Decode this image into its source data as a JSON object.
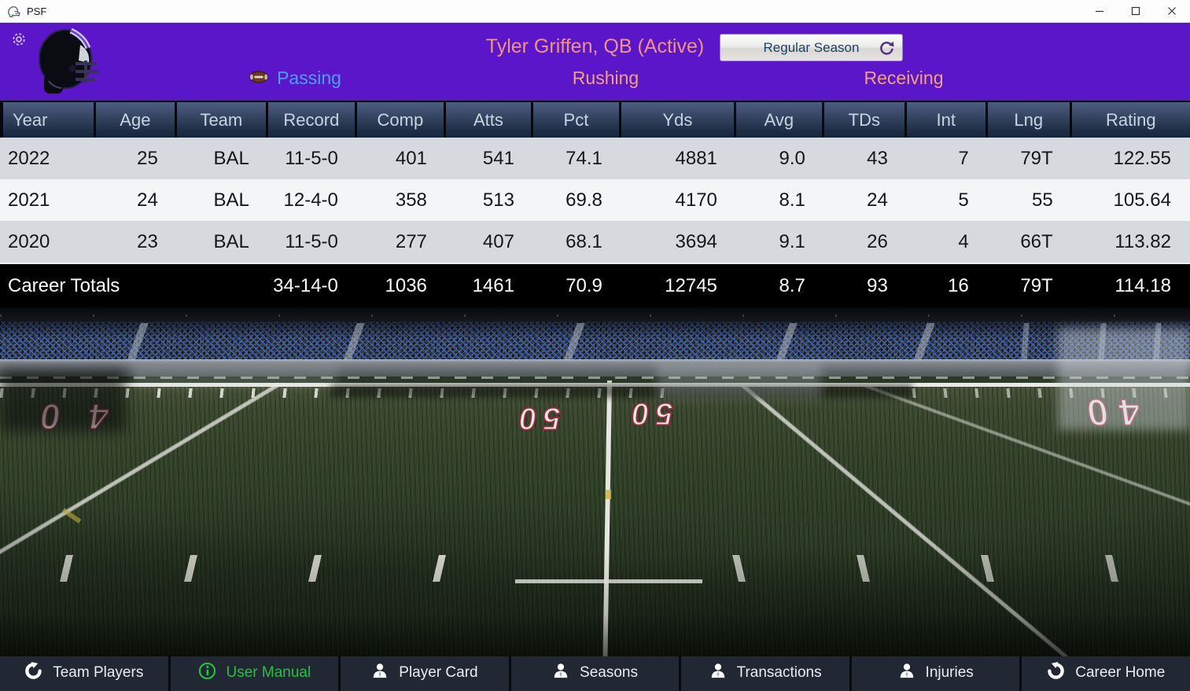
{
  "window": {
    "title": "PSF",
    "controls": {
      "minimize": "minimize",
      "maximize": "maximize",
      "close": "close"
    }
  },
  "header": {
    "player_name": "Tyler Griffen, QB (Active)",
    "season_button_label": "Regular Season",
    "tabs": [
      {
        "label": "Passing",
        "active": true,
        "icon": "football-icon"
      },
      {
        "label": "Rushing",
        "active": false
      },
      {
        "label": "Receiving",
        "active": false
      }
    ],
    "colors": {
      "header_purple": "#5a16c8",
      "active_tab_blue": "#47a0ff",
      "inactive_tab_salmon": "#f2a376",
      "player_name_salmon": "#ef9480"
    }
  },
  "stats_table": {
    "columns": [
      "Year",
      "Age",
      "Team",
      "Record",
      "Comp",
      "Atts",
      "Pct",
      "Yds",
      "Avg",
      "TDs",
      "Int",
      "Lng",
      "Rating"
    ],
    "rows": [
      [
        "2022",
        "25",
        "BAL",
        "11-5-0",
        "401",
        "541",
        "74.1",
        "4881",
        "9.0",
        "43",
        "7",
        "79T",
        "122.55"
      ],
      [
        "2021",
        "24",
        "BAL",
        "12-4-0",
        "358",
        "513",
        "69.8",
        "4170",
        "8.1",
        "24",
        "5",
        "55",
        "105.64"
      ],
      [
        "2020",
        "23",
        "BAL",
        "11-5-0",
        "277",
        "407",
        "68.1",
        "3694",
        "9.1",
        "26",
        "4",
        "66T",
        "113.82"
      ]
    ],
    "career_row": {
      "label": "Career Totals",
      "values": [
        "34-14-0",
        "1036",
        "1461",
        "70.9",
        "12745",
        "8.7",
        "93",
        "16",
        "79T",
        "114.18"
      ]
    }
  },
  "field": {
    "yard_numbers": [
      "40",
      "50",
      "50",
      "40"
    ]
  },
  "bottom_nav": {
    "items": [
      {
        "label": "Team Players",
        "icon": "back-arrow-icon",
        "active": false
      },
      {
        "label": "User Manual",
        "icon": "info-icon",
        "active": true
      },
      {
        "label": "Player Card",
        "icon": "person-icon",
        "active": false
      },
      {
        "label": "Seasons",
        "icon": "person-icon",
        "active": false
      },
      {
        "label": "Transactions",
        "icon": "person-icon",
        "active": false
      },
      {
        "label": "Injuries",
        "icon": "person-icon",
        "active": false
      },
      {
        "label": "Career Home",
        "icon": "forward-arrow-icon",
        "active": false
      }
    ],
    "active_color": "#21c442"
  }
}
